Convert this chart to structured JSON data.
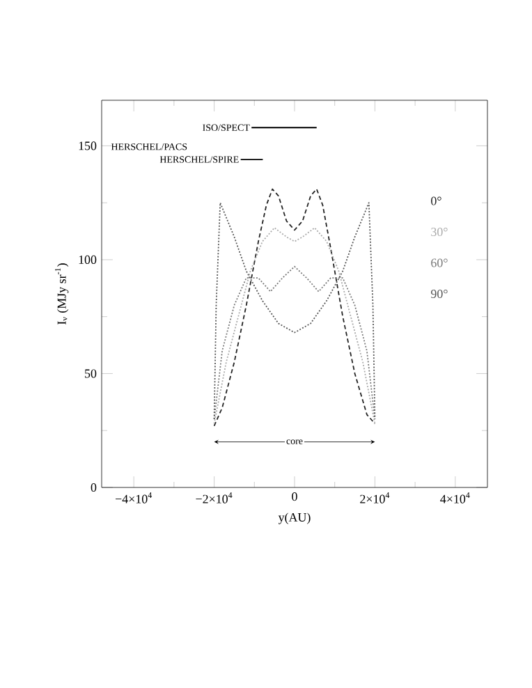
{
  "chart_data": {
    "type": "line",
    "xlabel": "y(AU)",
    "ylabel": "I$_{ν}$ (MJy sr$^{-1}$)",
    "xlim": [
      -48000,
      48000
    ],
    "ylim": [
      0,
      170
    ],
    "xticks": [
      {
        "value": -40000,
        "label": "−4×10$^{4}$"
      },
      {
        "value": -20000,
        "label": "−2×10$^{4}$"
      },
      0,
      {
        "value": 20000,
        "label": "2×10$^{4}$"
      },
      {
        "value": 40000,
        "label": "4×10$^{4}$"
      }
    ],
    "yticks": [
      0,
      50,
      100,
      150
    ],
    "x": [
      -20000,
      -18000,
      -15000,
      -12000,
      -9000,
      -7000,
      -5500,
      -4000,
      -2000,
      0,
      2000,
      4000,
      5500,
      7000,
      9000,
      12000,
      15000,
      18000,
      20000
    ],
    "series": [
      {
        "name": "0°",
        "color": "#222222",
        "line_style": "dashed",
        "values": [
          27,
          35,
          55,
          80,
          108,
          124,
          131,
          128,
          117,
          113,
          117,
          128,
          131,
          124,
          105,
          75,
          50,
          32,
          28
        ]
      },
      {
        "name": "30°",
        "color": "#aaaaaa",
        "line_style": "dotted",
        "x": [
          -20000,
          -17000,
          -14000,
          -11000,
          -8000,
          -5000,
          -2000,
          0,
          2000,
          5000,
          8000,
          11000,
          14000,
          17000,
          20000
        ],
        "values": [
          28,
          55,
          75,
          95,
          108,
          114,
          110,
          108,
          110,
          114,
          108,
          95,
          75,
          55,
          28
        ]
      },
      {
        "name": "60°",
        "color": "#777777",
        "line_style": "dotted",
        "x": [
          -20000,
          -18000,
          -15000,
          -12000,
          -9000,
          -6000,
          -3000,
          0,
          3000,
          6000,
          9000,
          12000,
          15000,
          18000,
          20000
        ],
        "values": [
          30,
          60,
          80,
          92,
          92,
          86,
          92,
          97,
          92,
          86,
          92,
          92,
          80,
          60,
          30
        ]
      },
      {
        "name": "90°",
        "color": "#555555",
        "line_style": "dotted",
        "x": [
          -20000,
          -19500,
          -18500,
          -15000,
          -12000,
          -8000,
          -4000,
          0,
          4000,
          8000,
          12000,
          15000,
          18500,
          19500,
          20000
        ],
        "values": [
          30,
          80,
          125,
          110,
          95,
          82,
          72,
          68,
          72,
          82,
          95,
          110,
          125,
          80,
          30
        ]
      },
      {
        "name": "ISO/SPECT",
        "color": "#000000",
        "line_style": "solid",
        "x": [
          -10700,
          5500
        ],
        "values": [
          158,
          158
        ]
      },
      {
        "name": "HERSCHEL/SPIRE",
        "color": "#000000",
        "line_style": "solid",
        "x": [
          -13400,
          -7900
        ],
        "values": [
          144,
          144
        ]
      }
    ],
    "annotations": [
      "HERSCHEL/PACS",
      {
        "text": "core",
        "x": 0,
        "y": 20
      }
    ]
  }
}
